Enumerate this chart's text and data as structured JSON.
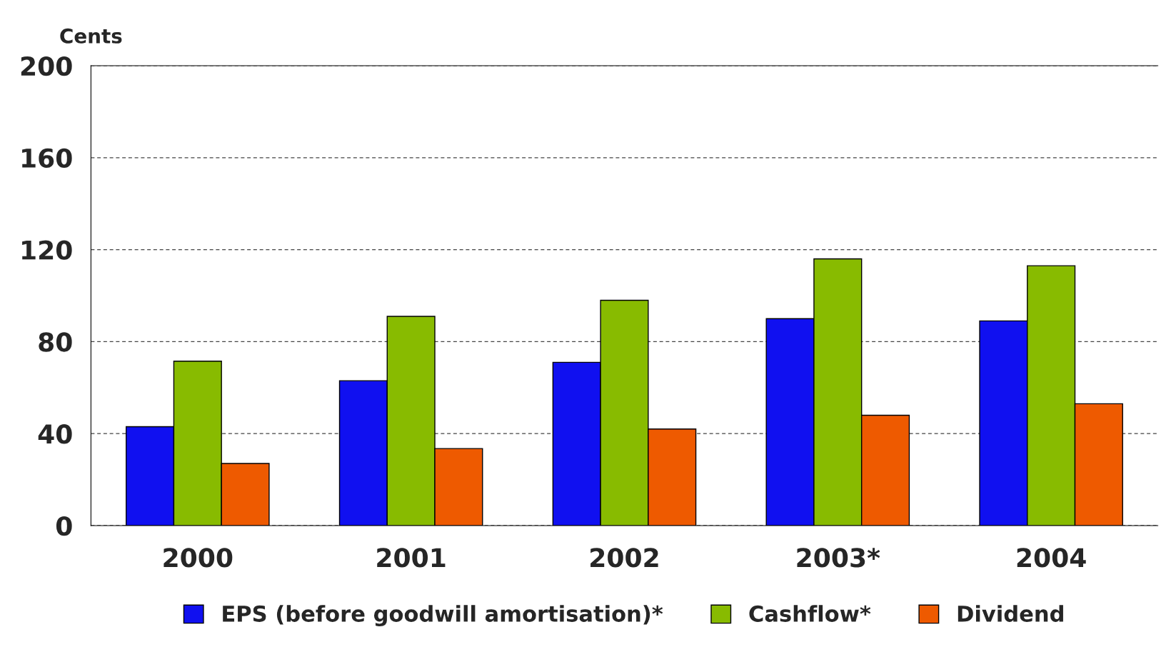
{
  "chart_data": {
    "type": "bar",
    "ylabel": "Cents",
    "categories": [
      "2000",
      "2001",
      "2002",
      "2003*",
      "2004"
    ],
    "series": [
      {
        "name": "EPS (before goodwill amortisation)*",
        "color": "#1010f0",
        "values": [
          43,
          63,
          71,
          90,
          89
        ]
      },
      {
        "name": "Cashflow*",
        "color": "#88bb00",
        "values": [
          71.5,
          91,
          98,
          116,
          113
        ]
      },
      {
        "name": "Dividend",
        "color": "#ee5a00",
        "values": [
          27,
          33.5,
          42,
          48,
          53
        ]
      }
    ],
    "ylim": [
      0,
      200
    ],
    "yticks": [
      0,
      40,
      80,
      120,
      160,
      200
    ],
    "grid": "y",
    "legend": "bottom"
  }
}
